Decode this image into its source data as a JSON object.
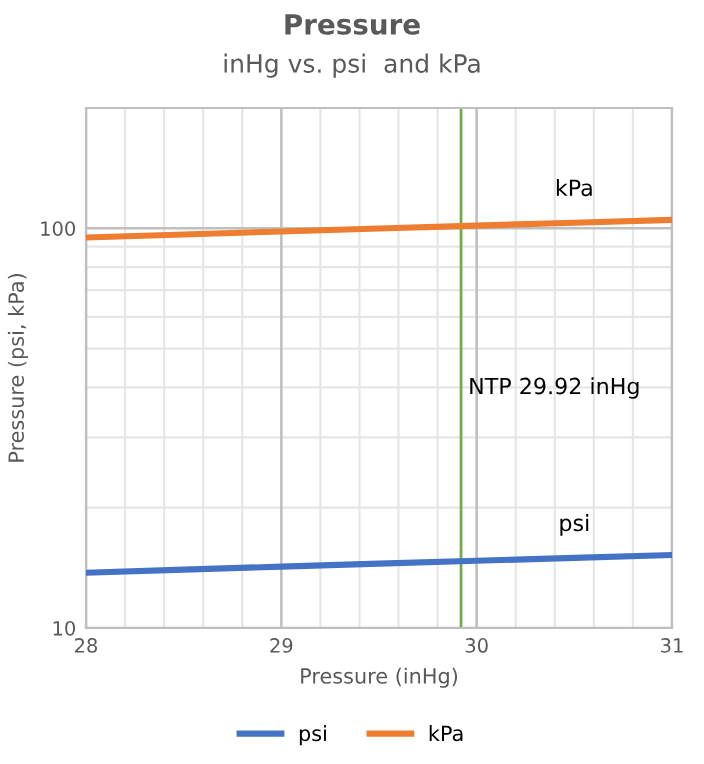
{
  "chart_data": {
    "type": "line",
    "title": "Pressure",
    "subtitle": "inHg vs. psi  and kPa",
    "xlabel": "Pressure (inHg)",
    "ylabel": "Pressure (psi, kPa)",
    "x": [
      28,
      28.5,
      29,
      29.5,
      30,
      30.5,
      31
    ],
    "series": [
      {
        "name": "psi",
        "color": "#4472c4",
        "values": [
          13.75,
          14.0,
          14.24,
          14.49,
          14.73,
          14.98,
          15.23
        ]
      },
      {
        "name": "kPa",
        "color": "#ed7d31",
        "values": [
          94.82,
          96.51,
          98.21,
          99.9,
          101.59,
          103.28,
          104.98
        ]
      }
    ],
    "xlim": [
      28,
      31
    ],
    "xticks": [
      28,
      29,
      30,
      31
    ],
    "ylim": [
      10,
      200
    ],
    "yticks": [
      10,
      100
    ],
    "log": "y",
    "grid": true,
    "legend": "bottom",
    "marker": "none",
    "line_style": "solid",
    "ref_lines": [
      {
        "axis": "x",
        "value": 29.92,
        "label": "NTP 29.92 inHg",
        "color": "#70ad47"
      }
    ]
  }
}
